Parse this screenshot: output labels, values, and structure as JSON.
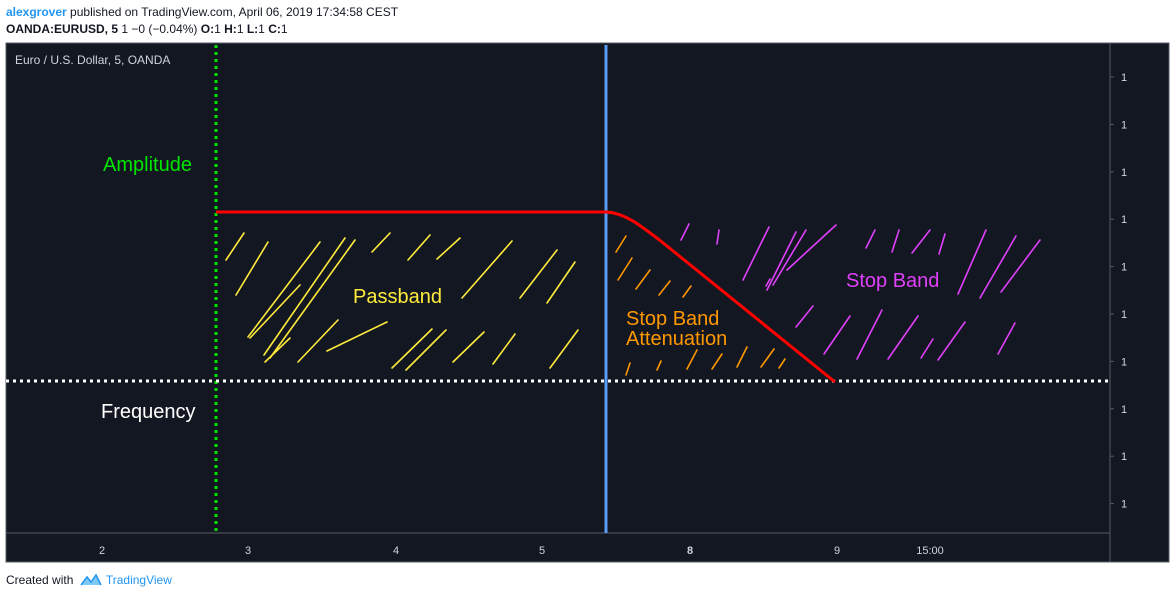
{
  "header": {
    "author": "alexgrover",
    "published": "published on TradingView.com, April 06, 2019 17:34:58 CEST",
    "symbol": "OANDA:EURUSD, 5",
    "change": "1 −0 (−0.04%)",
    "o_label": "O:",
    "o_value": "1",
    "h_label": "H:",
    "h_value": "1",
    "l_label": "L:",
    "l_value": "1",
    "c_label": "C:",
    "c_value": "1"
  },
  "chart_data": {
    "type": "line",
    "legend_title": "Euro / U.S. Dollar, 5, OANDA",
    "x_ticks": [
      "2",
      "3",
      "4",
      "5",
      "8",
      "9",
      "15:00"
    ],
    "x_ticks_bold": [
      "8"
    ],
    "y_ticks": [
      "1",
      "1",
      "1",
      "1",
      "1",
      "1",
      "1",
      "1",
      "1",
      "1"
    ],
    "annotations": {
      "amplitude": "Amplitude",
      "frequency": "Frequency",
      "passband": "Passband",
      "stop_band_attenuation_1": "Stop Band",
      "stop_band_attenuation_2": "Attenuation",
      "stop_band": "Stop Band"
    },
    "colors": {
      "background": "#131722",
      "response_line": "#ff0000",
      "cutoff_line": "#5b9cf6",
      "amplitude_axis": "#00e600",
      "frequency_axis": "#ffffff",
      "passband": "#ffeb3b",
      "attenuation": "#ff9800",
      "stop_band": "#e040fb"
    },
    "grid": false
  },
  "footer": {
    "created_with": "Created with",
    "brand": "TradingView"
  }
}
